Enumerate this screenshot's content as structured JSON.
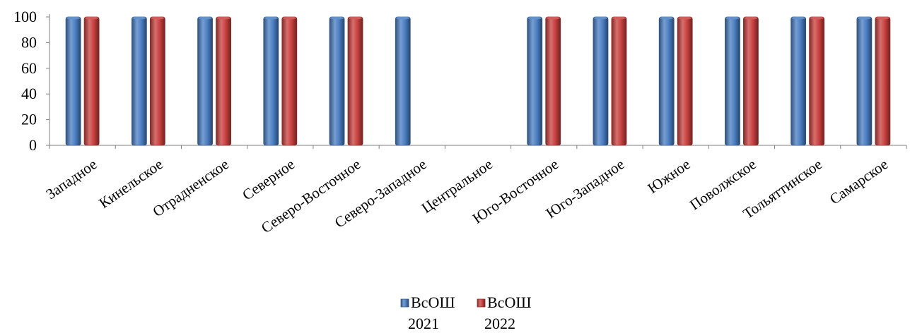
{
  "chart_data": {
    "type": "bar",
    "title": "",
    "xlabel": "",
    "ylabel": "",
    "ylim": [
      0,
      100
    ],
    "yticks": [
      0,
      20,
      40,
      60,
      80,
      100
    ],
    "grid": false,
    "legend_position": "bottom",
    "categories": [
      "Западное",
      "Кинельское",
      "Отрадненское",
      "Северное",
      "Северо-Восточное",
      "Северо-Западное",
      "Центральное",
      "Юго-Восточное",
      "Юго-Западное",
      "Южное",
      "Поволжское",
      "Тольяттинское",
      "Самарское"
    ],
    "series": [
      {
        "name": "ВсОШ 2021",
        "legend_lines": [
          "ВсОШ",
          "2021"
        ],
        "color": "#4A7EC2",
        "values": [
          100,
          100,
          100,
          100,
          100,
          100,
          0,
          100,
          100,
          100,
          100,
          100,
          100
        ]
      },
      {
        "name": "ВсОШ 2022",
        "legend_lines": [
          "ВсОШ",
          "2022"
        ],
        "color": "#C8403E",
        "values": [
          100,
          100,
          100,
          100,
          100,
          0,
          0,
          100,
          100,
          100,
          100,
          100,
          100
        ]
      }
    ]
  }
}
